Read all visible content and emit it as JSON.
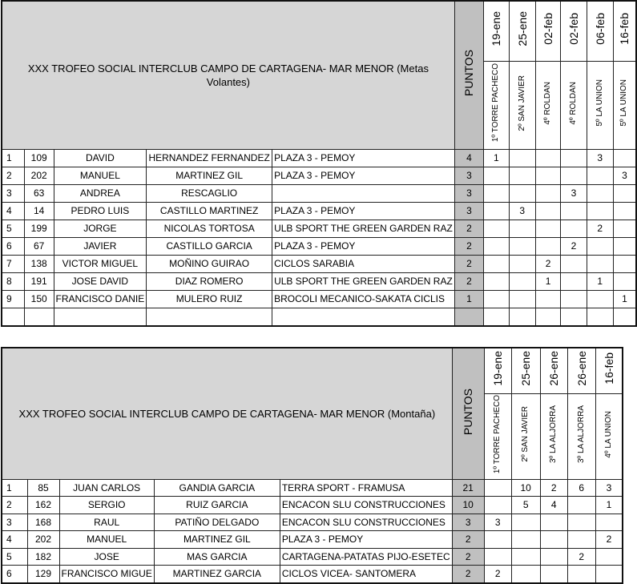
{
  "tables": [
    {
      "title": "XXX TROFEO SOCIAL INTERCLUB CAMPO DE CARTAGENA- MAR MENOR (Metas Volantes)",
      "puntos_label": "PUNTOS",
      "dates": [
        "19-ene",
        "25-ene",
        "02-feb",
        "02-feb",
        "06-feb",
        "16-feb"
      ],
      "venues": [
        "1º TORRE PACHECO",
        "2º SAN JAVIER",
        "4º ROLDAN",
        "4º ROLDAN",
        "5º LA UNION",
        "5º LA UNION"
      ],
      "rows": [
        [
          "1",
          "109",
          "DAVID",
          "HERNANDEZ FERNANDEZ",
          "PLAZA 3 - PEMOY",
          "4",
          "1",
          "",
          "",
          "",
          "3",
          ""
        ],
        [
          "2",
          "202",
          "MANUEL",
          "MARTINEZ GIL",
          "PLAZA 3 - PEMOY",
          "3",
          "",
          "",
          "",
          "",
          "",
          "3"
        ],
        [
          "3",
          "63",
          "ANDREA",
          "RESCAGLIO",
          "",
          "3",
          "",
          "",
          "",
          "3",
          "",
          ""
        ],
        [
          "4",
          "14",
          "PEDRO LUIS",
          "CASTILLO MARTINEZ",
          "PLAZA 3 - PEMOY",
          "3",
          "",
          "3",
          "",
          "",
          "",
          ""
        ],
        [
          "5",
          "199",
          "JORGE",
          "NICOLAS TORTOSA",
          "ULB SPORT THE GREEN GARDEN RAZ",
          "2",
          "",
          "",
          "",
          "",
          "2",
          ""
        ],
        [
          "6",
          "67",
          "JAVIER",
          "CASTILLO GARCIA",
          "PLAZA 3 - PEMOY",
          "2",
          "",
          "",
          "",
          "2",
          "",
          ""
        ],
        [
          "7",
          "138",
          "VICTOR MIGUEL",
          "MOÑINO GUIRAO",
          "CICLOS SARABIA",
          "2",
          "",
          "",
          "2",
          "",
          "",
          ""
        ],
        [
          "8",
          "191",
          "JOSE DAVID",
          "DIAZ ROMERO",
          "ULB SPORT THE GREEN GARDEN RAZ",
          "2",
          "",
          "",
          "1",
          "",
          "1",
          ""
        ],
        [
          "9",
          "150",
          "FRANCISCO DANIE",
          "MULERO RUIZ",
          "BROCOLI MECANICO-SAKATA CICLIS",
          "1",
          "",
          "",
          "",
          "",
          "",
          "1"
        ],
        [
          "",
          "",
          "",
          "",
          "",
          "",
          "",
          "",
          "",
          "",
          "",
          ""
        ]
      ]
    },
    {
      "title": "XXX TROFEO SOCIAL INTERCLUB CAMPO DE CARTAGENA- MAR MENOR (Montaña)",
      "puntos_label": "PUNTOS",
      "dates": [
        "19-ene",
        "25-ene",
        "26-ene",
        "26-ene",
        "16-feb"
      ],
      "venues": [
        "1º TORRE PACHECO",
        "2º SAN JAVIER",
        "3º LA ALJORRA",
        "3º LA ALJORRA",
        "4º LA UNION"
      ],
      "rows": [
        [
          "1",
          "85",
          "JUAN CARLOS",
          "GANDIA GARCIA",
          "TERRA SPORT - FRAMUSA",
          "21",
          "",
          "10",
          "2",
          "6",
          "3"
        ],
        [
          "2",
          "162",
          "SERGIO",
          "RUIZ GARCIA",
          "ENCACON SLU CONSTRUCCIONES",
          "10",
          "",
          "5",
          "4",
          "",
          "1"
        ],
        [
          "3",
          "168",
          "RAUL",
          "PATIÑO DELGADO",
          "ENCACON SLU CONSTRUCCIONES",
          "3",
          "3",
          "",
          "",
          "",
          ""
        ],
        [
          "4",
          "202",
          "MANUEL",
          "MARTINEZ GIL",
          "PLAZA 3 - PEMOY",
          "2",
          "",
          "",
          "",
          "",
          "2"
        ],
        [
          "5",
          "182",
          "JOSE",
          "MAS GARCIA",
          "CARTAGENA-PATATAS PIJO-ESETEC",
          "2",
          "",
          "",
          "",
          "2",
          ""
        ],
        [
          "6",
          "129",
          "FRANCISCO MIGUE",
          "MARTINEZ GARCIA",
          "CICLOS VICEA- SANTOMERA",
          "2",
          "2",
          "",
          "",
          "",
          ""
        ]
      ]
    }
  ]
}
